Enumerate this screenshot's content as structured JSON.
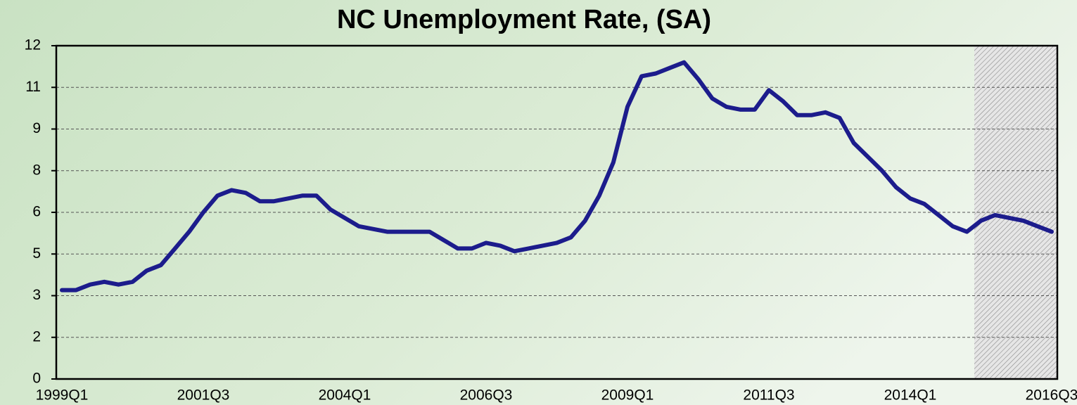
{
  "chart_data": {
    "type": "line",
    "title": "NC Unemployment Rate, (SA)",
    "categories": [
      "1999Q1",
      null,
      null,
      null,
      null,
      null,
      null,
      null,
      null,
      null,
      "2001Q3",
      null,
      null,
      null,
      null,
      null,
      null,
      null,
      null,
      null,
      "2004Q1",
      null,
      null,
      null,
      null,
      null,
      null,
      null,
      null,
      null,
      "2006Q3",
      null,
      null,
      null,
      null,
      null,
      null,
      null,
      null,
      null,
      "2009Q1",
      null,
      null,
      null,
      null,
      null,
      null,
      null,
      null,
      null,
      "2011Q3",
      null,
      null,
      null,
      null,
      null,
      null,
      null,
      null,
      null,
      "2014Q1",
      null,
      null,
      null,
      null,
      null,
      null,
      null,
      null,
      null,
      "2016Q3"
    ],
    "series": [
      {
        "color": "#1c1c8c",
        "values": [
          3.2,
          3.2,
          3.4,
          3.5,
          3.4,
          3.5,
          3.9,
          4.1,
          4.7,
          5.3,
          6.0,
          6.6,
          6.8,
          6.7,
          6.4,
          6.4,
          6.5,
          6.6,
          6.6,
          6.1,
          5.8,
          5.5,
          5.4,
          5.3,
          5.3,
          5.3,
          5.3,
          5.0,
          4.7,
          4.7,
          4.9,
          4.8,
          4.6,
          4.7,
          4.8,
          4.9,
          5.1,
          5.7,
          6.6,
          7.8,
          9.8,
          10.9,
          11.0,
          11.2,
          11.4,
          10.8,
          10.1,
          9.8,
          9.7,
          9.7,
          10.4,
          10.0,
          9.5,
          9.5,
          9.6,
          9.4,
          8.5,
          8.0,
          7.5,
          6.9,
          6.5,
          6.3,
          5.9,
          5.5,
          5.3,
          5.7,
          5.9,
          5.8,
          5.7,
          5.5,
          5.3
        ]
      }
    ],
    "ylim": [
      0,
      12
    ],
    "yticks": [
      0,
      {
        "value": 1.5,
        "label": "2"
      },
      3,
      {
        "value": 4.5,
        "label": "5"
      },
      6,
      {
        "value": 7.5,
        "label": "8"
      },
      9,
      {
        "value": 10.5,
        "label": "11"
      },
      12
    ],
    "grid": true
  }
}
